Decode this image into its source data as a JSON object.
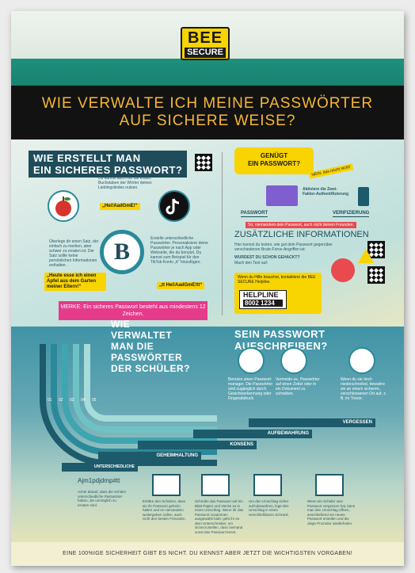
{
  "logo": {
    "line1": "BEE",
    "line2": "SECURE"
  },
  "headline": {
    "line1": "WIE VERWALTE ICH MEINE PASSWÖRTER",
    "line2": "AUF SICHERE WEISE?"
  },
  "create": {
    "title1": "WIE ERSTELLT MAN",
    "title2": "EIN SICHERES PASSWORT?",
    "tip_top": "Du kannst auch nur die ersten Buchstaben der Wörter deines Lieblingsliedes nutzen.",
    "tag1": "„Hei!AadGmE!“",
    "tip_left": "Überlege dir einen Satz, der einfach zu merken, aber schwer zu erraten ist. Der Satz sollte keine persönlichen Informationen enthalten.",
    "tag2": "„Heute esse ich einen Apfel aus dem Garten meiner Eltern!“",
    "tip_right": "Erstelle unterschiedliche Passwörter. Personalisiere deine Passwörter je nach App oder Webseite, die du benutzt. Du kannst zum Beispiel für den TikTok-Konto „tt“ hinzufügen.",
    "tag3": "„tt Hei!AadGmE!tt“",
    "center_letter": "B",
    "note": "MERKE: Ein sicheres Passwort besteht aus mindestens 12 Zeichen."
  },
  "enough": {
    "bubble1": "GENÜGT",
    "bubble2": "EIN PASSWORT?",
    "badge": "NEIN, das reicht nicht!",
    "factor": "Aktiviere die Zwei-Faktor-Authentifizierung",
    "step1": "PASSWORT",
    "step2": "VERIFIZIERUNG",
    "warning": "So, niemandem dein Passwort, auch nicht deinen Freunden."
  },
  "info": {
    "title": "ZUSÄTZLICHE INFORMATIONEN",
    "text1": "Hier kannst du testen, wie gut dein Passwort gegenüber verschiedenen Brute-Force-Angriffen ist:",
    "q": "WURDEST DU SCHON GEHACKT?",
    "text2": "Mach den Test auf:",
    "help_text": "Wenn du Hilfe brauchst, kontaktiere die BEE SECURE Helpline.",
    "helpline": "HELPLINE",
    "phone": "8002 1234"
  },
  "manage": {
    "title": [
      "WIE",
      "VERWALTET",
      "MAN DIE",
      "PASSWÖRTER",
      "DER SCHÜLER?"
    ],
    "numbers": [
      "01",
      "02",
      "03",
      "04",
      "05"
    ],
    "write_title": "SEIN PASSWORT AUFSCHREIBEN?",
    "write1": "Benutze einen Passwort-manager. Die Passwörter sind zugänglich durch Gesichtserkennung oder Fingerabdruck.",
    "write2": "Vermeide es, Passwörter auf einen Zettel oder in ein Dokument zu schreiben.",
    "write3": "Wenn du sie doch niederschreibst, bewahre sie an einem sicheren, verschlossenen Ort auf, z. B. im Tresor.",
    "rows": [
      "VERGESSEN",
      "AUFBEWAHRUNG",
      "KONSENS",
      "GEHEIMHALTUNG",
      "UNTERSCHIEDLICHE"
    ],
    "sample": "Ajm1pdjdmp#tt",
    "steps": [
      "Achte darauf, dass die Schüler unterschiedliche Passwörter haben, die unmöglich zu erraten sind.",
      "Erkläre den Schülern, dass sie ihr Passwort geheim halten und es niemandem weitergeben sollen, auch nicht den besten Freunden.",
      "Schreibe das Passwort auf ein Blatt Papier und stecke es in einen Umschlag. Wenn ihr das Passwort zusammen ausgewählt habt, gebt ihr es dem Unterschreiber, um sicherzustellen, dass niemand sonst das Passwort kennt.",
      "Um den Umschlag sicher aufzubewahren, lege den Umschlag in einen verschließbaren Schrank.",
      "Wenn ein Schüler sein Passwort vergessen hat, kann man den Umschlag öffnen, anschließend ein neues Passwort erstellen und die obige Prozedur wiederholen."
    ]
  },
  "footer": "EINE 100%IGE SICHERHEIT GIBT ES NICHT. DU KENNST ABER JETZT DIE WICHTIGSTEN VORGABEN!"
}
